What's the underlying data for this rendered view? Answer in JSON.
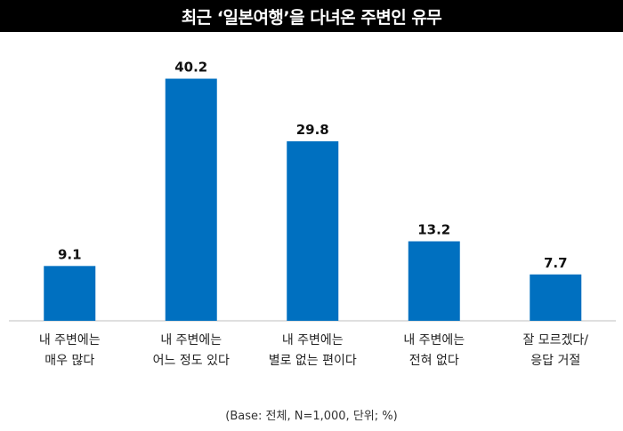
{
  "title": "최근 ‘일본여행’을 다녀온 주변인 유무",
  "footnote": "(Base: 전체, N=1,000, 단위; %)",
  "chart_data": {
    "type": "bar",
    "categories": [
      [
        "내 주변에는",
        "매우 많다"
      ],
      [
        "내 주변에는",
        "어느 정도 있다"
      ],
      [
        "내 주변에는",
        "별로 없는 편이다"
      ],
      [
        "내 주변에는",
        "전혀 없다"
      ],
      [
        "잘 모르겠다/",
        "응답 거절"
      ]
    ],
    "values": [
      9.1,
      40.2,
      29.8,
      13.2,
      7.7
    ],
    "value_labels": [
      "9.1",
      "40.2",
      "29.8",
      "13.2",
      "7.7"
    ],
    "ylim": [
      0,
      45
    ],
    "grid": false,
    "bar_color": "#0070c0",
    "axis_color": "#bfbfbf"
  }
}
